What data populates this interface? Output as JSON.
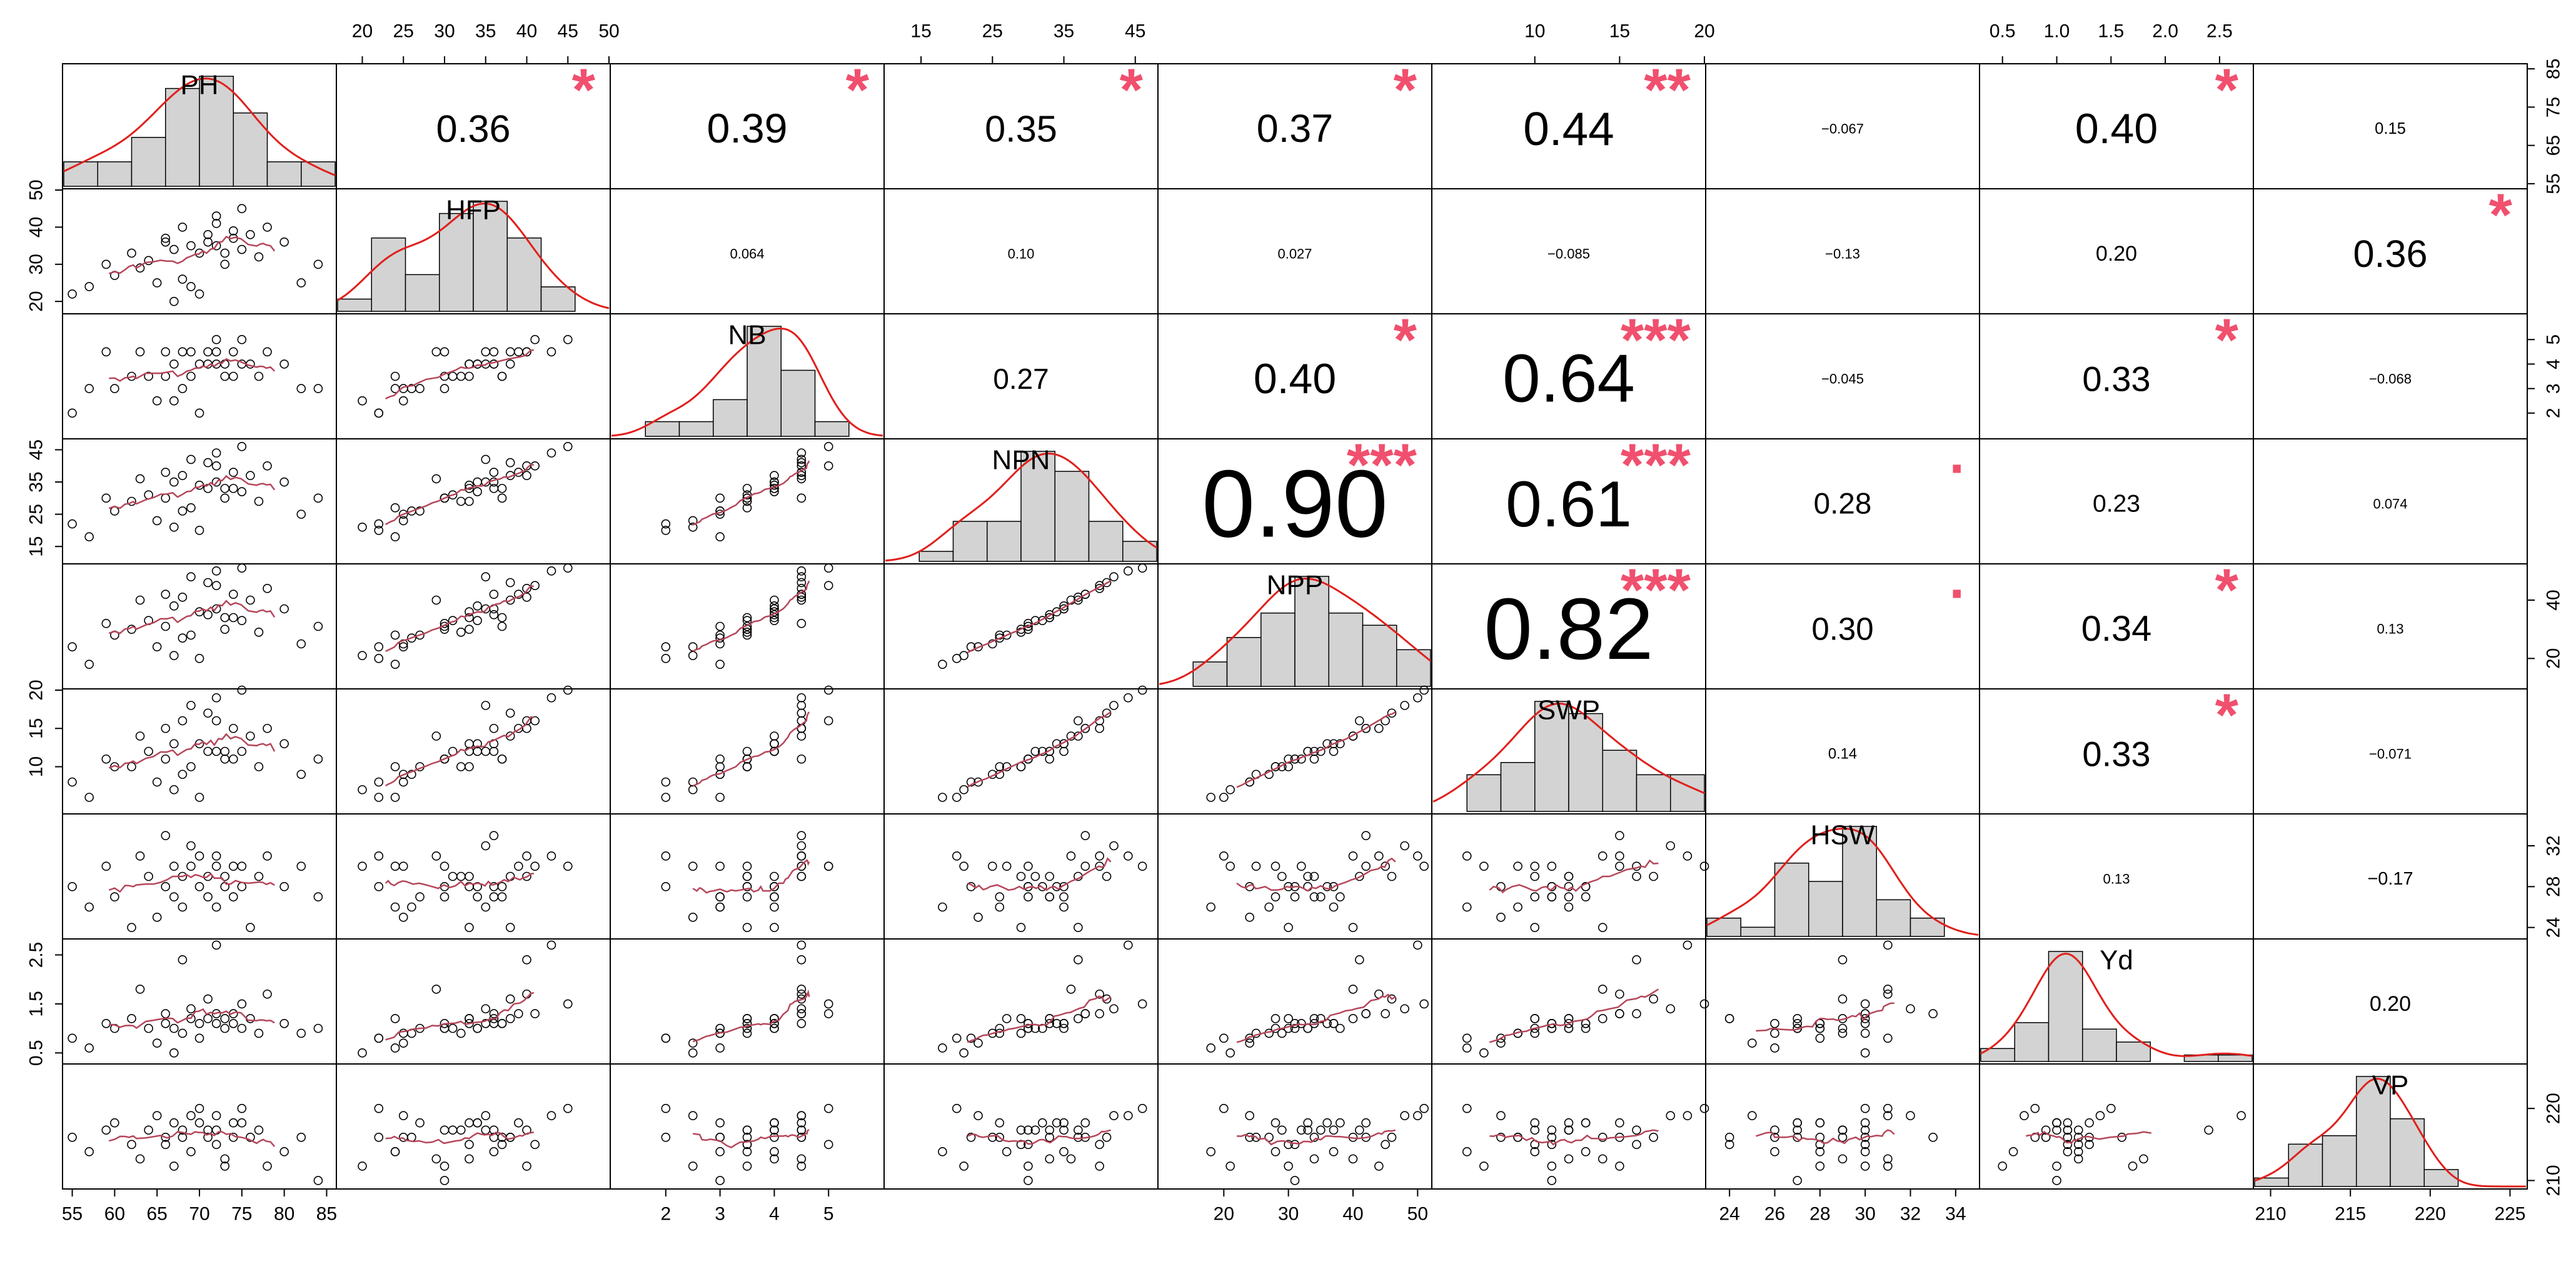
{
  "chart_data": {
    "type": "scatter",
    "variables": [
      "PH",
      "HFP",
      "NB",
      "NPN",
      "NPP",
      "SWP",
      "HSW",
      "Yd",
      "VP"
    ],
    "correlation_matrix": {
      "rows": [
        [
          "PH",
          "HFP",
          "0.36",
          "*"
        ],
        [
          "PH",
          "NB",
          "0.39",
          "*"
        ],
        [
          "PH",
          "NPN",
          "0.35",
          "*"
        ],
        [
          "PH",
          "NPP",
          "0.37",
          "*"
        ],
        [
          "PH",
          "SWP",
          "0.44",
          "**"
        ],
        [
          "PH",
          "HSW",
          "−0.067",
          ""
        ],
        [
          "PH",
          "Yd",
          "0.40",
          "*"
        ],
        [
          "PH",
          "VP",
          "0.15",
          ""
        ],
        [
          "HFP",
          "NB",
          "0.064",
          ""
        ],
        [
          "HFP",
          "NPN",
          "0.10",
          ""
        ],
        [
          "HFP",
          "NPP",
          "0.027",
          ""
        ],
        [
          "HFP",
          "SWP",
          "−0.085",
          ""
        ],
        [
          "HFP",
          "HSW",
          "−0.13",
          ""
        ],
        [
          "HFP",
          "Yd",
          "0.20",
          ""
        ],
        [
          "HFP",
          "VP",
          "0.36",
          "*"
        ],
        [
          "NB",
          "NPN",
          "0.27",
          ""
        ],
        [
          "NB",
          "NPP",
          "0.40",
          "*"
        ],
        [
          "NB",
          "SWP",
          "0.64",
          "***"
        ],
        [
          "NB",
          "HSW",
          "−0.045",
          ""
        ],
        [
          "NB",
          "Yd",
          "0.33",
          "*"
        ],
        [
          "NB",
          "VP",
          "−0.068",
          ""
        ],
        [
          "NPN",
          "NPP",
          "0.90",
          "***"
        ],
        [
          "NPN",
          "SWP",
          "0.61",
          "***"
        ],
        [
          "NPN",
          "HSW",
          "0.28",
          "."
        ],
        [
          "NPN",
          "Yd",
          "0.23",
          ""
        ],
        [
          "NPN",
          "VP",
          "0.074",
          ""
        ],
        [
          "NPP",
          "SWP",
          "0.82",
          "***"
        ],
        [
          "NPP",
          "HSW",
          "0.30",
          "."
        ],
        [
          "NPP",
          "Yd",
          "0.34",
          "*"
        ],
        [
          "NPP",
          "VP",
          "0.13",
          ""
        ],
        [
          "SWP",
          "HSW",
          "0.14",
          ""
        ],
        [
          "SWP",
          "Yd",
          "0.33",
          "*"
        ],
        [
          "SWP",
          "VP",
          "−0.071",
          ""
        ],
        [
          "HSW",
          "Yd",
          "0.13",
          ""
        ],
        [
          "HSW",
          "VP",
          "−0.17",
          ""
        ],
        [
          "Yd",
          "VP",
          "0.20",
          ""
        ]
      ]
    },
    "axes": {
      "PH": {
        "range": [
          54,
          86
        ],
        "bottom_ticks": [
          "55",
          "60",
          "65",
          "70",
          "75",
          "80",
          "85"
        ],
        "right_ticks": [
          "55",
          "65",
          "75",
          "85"
        ]
      },
      "HFP": {
        "range": [
          17,
          50
        ],
        "top_ticks": [
          "20",
          "25",
          "30",
          "35",
          "40",
          "45",
          "50"
        ],
        "left_ticks": [
          "20",
          "30",
          "40",
          "50"
        ]
      },
      "NB": {
        "range": [
          1,
          6
        ],
        "bottom_ticks": [
          "2",
          "3",
          "4",
          "5"
        ],
        "right_ticks": [
          "2",
          "3",
          "4",
          "5"
        ]
      },
      "NPN": {
        "range": [
          10,
          48
        ],
        "top_ticks": [
          "15",
          "25",
          "35",
          "45"
        ],
        "left_ticks": [
          "15",
          "25",
          "35",
          "45"
        ]
      },
      "NPP": {
        "range": [
          10,
          52
        ],
        "bottom_ticks": [
          "20",
          "30",
          "40",
          "50"
        ],
        "right_ticks": [
          "20",
          "40"
        ]
      },
      "SWP": {
        "range": [
          4,
          20
        ],
        "top_ticks": [
          "10",
          "15",
          "20"
        ],
        "left_ticks": [
          "10",
          "15",
          "20"
        ]
      },
      "HSW": {
        "range": [
          23,
          35
        ],
        "bottom_ticks": [
          "24",
          "26",
          "28",
          "30",
          "32",
          "34"
        ],
        "right_ticks": [
          "24",
          "28",
          "32"
        ]
      },
      "Yd": {
        "range": [
          0.3,
          2.8
        ],
        "top_ticks": [
          "0.5",
          "1.0",
          "1.5",
          "2.0",
          "2.5"
        ],
        "left_ticks": [
          "0.5",
          "1.5",
          "2.5"
        ]
      },
      "VP": {
        "range": [
          209,
          226
        ],
        "bottom_ticks": [
          "210",
          "215",
          "220",
          "225"
        ],
        "right_ticks": [
          "210",
          "220"
        ]
      }
    },
    "samples": {
      "PH": [
        55,
        57,
        59,
        60,
        62,
        63,
        64,
        65,
        66,
        66,
        67,
        67,
        68,
        68,
        69,
        69,
        70,
        70,
        71,
        71,
        72,
        72,
        72,
        73,
        73,
        74,
        74,
        75,
        75,
        76,
        77,
        78,
        80,
        82,
        84
      ],
      "HFP": [
        22,
        24,
        30,
        27,
        33,
        29,
        31,
        25,
        36,
        37,
        34,
        20,
        40,
        26,
        35,
        24,
        33,
        22,
        38,
        36,
        41,
        43,
        35,
        30,
        33,
        39,
        37,
        45,
        34,
        38,
        32,
        40,
        36,
        25,
        30
      ],
      "NB": [
        2.0,
        3.0,
        4.5,
        3.0,
        3.5,
        4.5,
        3.5,
        2.5,
        4.5,
        3.5,
        4.0,
        2.5,
        4.5,
        3.0,
        4.5,
        3.5,
        4.0,
        2.0,
        4.5,
        4.0,
        5.0,
        4.5,
        4.0,
        3.5,
        4.0,
        4.5,
        3.5,
        5.0,
        4.0,
        4.0,
        3.5,
        4.5,
        4.0,
        3.0,
        3.0
      ],
      "NPN": [
        22,
        18,
        30,
        26,
        29,
        36,
        31,
        23,
        38,
        30,
        35,
        21,
        37,
        26,
        42,
        27,
        34,
        20,
        41,
        33,
        40,
        44,
        35,
        30,
        33,
        38,
        33,
        46,
        32,
        37,
        29,
        40,
        35,
        25,
        30
      ],
      "NPP": [
        24,
        18,
        32,
        28,
        30,
        40,
        33,
        24,
        42,
        31,
        38,
        21,
        41,
        27,
        48,
        28,
        36,
        20,
        46,
        35,
        45,
        50,
        37,
        30,
        34,
        42,
        34,
        51,
        33,
        40,
        29,
        44,
        37,
        25,
        31
      ],
      "SWP": [
        8,
        6,
        11,
        10,
        10,
        14,
        12,
        8,
        15,
        11,
        13,
        7,
        16,
        9,
        18,
        10,
        13,
        6,
        17,
        12,
        16,
        19,
        12,
        11,
        12,
        15,
        11,
        20,
        12,
        14,
        10,
        15,
        13,
        9,
        11
      ],
      "HSW": [
        28,
        26,
        30,
        27,
        24,
        31,
        29,
        25,
        33,
        28,
        27,
        30,
        29,
        26,
        32,
        30,
        28,
        31,
        29,
        27,
        30,
        31,
        26,
        28,
        29,
        30,
        27,
        30,
        28,
        24,
        29,
        31,
        28,
        30,
        27
      ],
      "Yd": [
        0.8,
        0.6,
        1.1,
        1.0,
        1.2,
        1.8,
        1.0,
        0.7,
        1.3,
        1.1,
        1.0,
        0.5,
        2.4,
        0.9,
        1.4,
        1.2,
        1.1,
        0.8,
        1.6,
        1.2,
        1.3,
        2.7,
        1.1,
        1.0,
        1.2,
        1.3,
        1.1,
        1.5,
        1.0,
        1.2,
        0.9,
        1.7,
        1.1,
        0.9,
        1.0
      ],
      "VP": [
        216,
        214,
        217,
        218,
        215,
        213,
        217,
        219,
        216,
        215,
        218,
        212,
        217,
        216,
        219,
        214,
        218,
        220,
        216,
        217,
        215,
        219,
        217,
        212,
        213,
        218,
        216,
        220,
        218,
        216,
        217,
        212,
        214,
        216,
        210
      ]
    },
    "colors": {
      "smooth": "#b5465a",
      "density": "#e0201c",
      "star": "#f0506e",
      "bar": "#d3d3d3"
    }
  }
}
